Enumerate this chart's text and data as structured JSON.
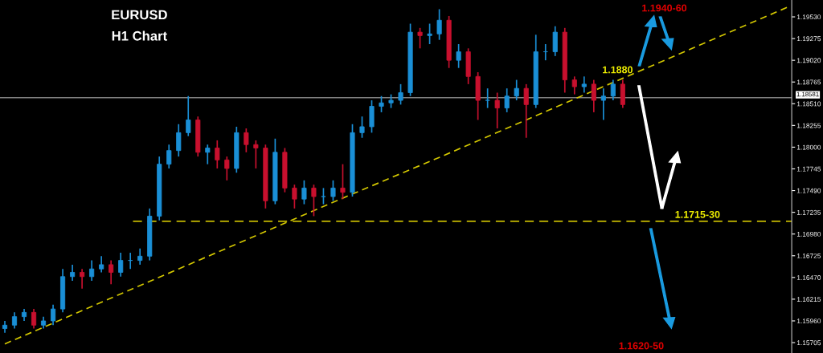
{
  "chart_data": {
    "type": "candlestick",
    "title": "EURUSD",
    "subtitle": "H1 Chart",
    "categories": [
      null,
      null,
      null,
      null,
      null,
      null,
      null,
      null,
      null,
      null,
      null,
      null,
      null,
      null,
      null,
      null,
      null,
      null,
      null,
      null,
      null,
      null,
      null,
      null,
      null,
      null,
      null,
      null,
      null,
      null,
      null,
      null,
      null,
      null,
      null,
      null,
      null,
      null,
      null,
      null,
      null,
      null,
      null,
      null,
      null,
      null,
      null,
      null,
      null,
      null,
      null,
      null,
      null,
      null,
      null,
      null,
      null,
      null,
      null,
      null,
      null,
      null,
      null,
      null,
      null,
      null,
      null,
      null,
      null,
      null,
      null,
      null,
      null,
      null,
      null,
      null,
      null,
      null,
      null,
      null,
      null,
      null
    ],
    "ohlc": [
      [
        1.1587,
        1.1596,
        1.1582,
        1.1591
      ],
      [
        1.1591,
        1.1606,
        1.1587,
        1.1601
      ],
      [
        1.1601,
        1.161,
        1.1596,
        1.1606
      ],
      [
        1.1606,
        1.161,
        1.1587,
        1.1591
      ],
      [
        1.1591,
        1.1601,
        1.1587,
        1.1596
      ],
      [
        1.1596,
        1.1615,
        1.1591,
        1.161
      ],
      [
        1.161,
        1.1657,
        1.1606,
        1.1648
      ],
      [
        1.1648,
        1.1662,
        1.1643,
        1.1653
      ],
      [
        1.1653,
        1.1657,
        1.1634,
        1.1648
      ],
      [
        1.1648,
        1.1667,
        1.1643,
        1.1657
      ],
      [
        1.1657,
        1.1672,
        1.1653,
        1.1662
      ],
      [
        1.1662,
        1.1667,
        1.1639,
        1.1653
      ],
      [
        1.1653,
        1.1676,
        1.1648,
        1.1667
      ],
      [
        1.1667,
        1.1676,
        1.1657,
        1.1667
      ],
      [
        1.1667,
        1.1681,
        1.1662,
        1.1672
      ],
      [
        1.1672,
        1.1728,
        1.1667,
        1.1719
      ],
      [
        1.1719,
        1.1789,
        1.1714,
        1.178
      ],
      [
        1.178,
        1.1803,
        1.1775,
        1.1796
      ],
      [
        1.1796,
        1.1827,
        1.1789,
        1.1817
      ],
      [
        1.1817,
        1.186,
        1.1813,
        1.1832
      ],
      [
        1.1832,
        1.1836,
        1.1789,
        1.1794
      ],
      [
        1.1794,
        1.1803,
        1.178,
        1.1799
      ],
      [
        1.1799,
        1.1808,
        1.1775,
        1.1785
      ],
      [
        1.1785,
        1.1789,
        1.1761,
        1.1775
      ],
      [
        1.1775,
        1.1824,
        1.177,
        1.1817
      ],
      [
        1.1817,
        1.1822,
        1.1794,
        1.1803
      ],
      [
        1.1803,
        1.1808,
        1.1775,
        1.1799
      ],
      [
        1.1799,
        1.1803,
        1.1728,
        1.1737
      ],
      [
        1.1737,
        1.181,
        1.1733,
        1.1794
      ],
      [
        1.1794,
        1.1799,
        1.1747,
        1.1752
      ],
      [
        1.1752,
        1.1756,
        1.1728,
        1.1739
      ],
      [
        1.1739,
        1.1761,
        1.1733,
        1.1752
      ],
      [
        1.1752,
        1.1756,
        1.1719,
        1.1742
      ],
      [
        1.1742,
        1.1752,
        1.1733,
        1.1742
      ],
      [
        1.1742,
        1.1761,
        1.1737,
        1.1752
      ],
      [
        1.1752,
        1.178,
        1.1739,
        1.1747
      ],
      [
        1.1747,
        1.1827,
        1.1742,
        1.1817
      ],
      [
        1.1817,
        1.1836,
        1.1811,
        1.1824
      ],
      [
        1.1824,
        1.1855,
        1.1817,
        1.1848
      ],
      [
        1.1848,
        1.186,
        1.1841,
        1.1852
      ],
      [
        1.1852,
        1.1862,
        1.1846,
        1.1855
      ],
      [
        1.1855,
        1.1874,
        1.185,
        1.1864
      ],
      [
        1.1864,
        1.1945,
        1.186,
        1.1935
      ],
      [
        1.1935,
        1.194,
        1.1916,
        1.1931
      ],
      [
        1.1931,
        1.1945,
        1.1921,
        1.1933
      ],
      [
        1.1933,
        1.1962,
        1.1926,
        1.1949
      ],
      [
        1.1949,
        1.1954,
        1.1893,
        1.1902
      ],
      [
        1.1902,
        1.1921,
        1.1893,
        1.1912
      ],
      [
        1.1912,
        1.1916,
        1.1874,
        1.1883
      ],
      [
        1.1883,
        1.1888,
        1.1832,
        1.1855
      ],
      [
        1.1855,
        1.1869,
        1.1846,
        1.1855
      ],
      [
        1.1855,
        1.1864,
        1.1822,
        1.1846
      ],
      [
        1.1846,
        1.1869,
        1.1841,
        1.186
      ],
      [
        1.186,
        1.1879,
        1.1855,
        1.1869
      ],
      [
        1.1869,
        1.1874,
        1.1811,
        1.185
      ],
      [
        1.185,
        1.1932,
        1.1846,
        1.1912
      ],
      [
        1.1912,
        1.1921,
        1.1902,
        1.1912
      ],
      [
        1.1912,
        1.1942,
        1.1907,
        1.1935
      ],
      [
        1.1935,
        1.194,
        1.1864,
        1.1879
      ],
      [
        1.1879,
        1.1883,
        1.1862,
        1.1871
      ],
      [
        1.1871,
        1.1883,
        1.1864,
        1.1874
      ],
      [
        1.1874,
        1.1879,
        1.1841,
        1.1855
      ],
      [
        1.1855,
        1.1869,
        1.1832,
        1.186
      ],
      [
        1.186,
        1.1879,
        1.1855,
        1.1874
      ],
      [
        1.1874,
        1.1879,
        1.1846,
        1.185
      ],
      null,
      null,
      null,
      null,
      null,
      null,
      null,
      null,
      null,
      null,
      null,
      null,
      null,
      null,
      null,
      null,
      null
    ],
    "colors": [
      "#1a8fd6",
      "#1a8fd6",
      "#1a8fd6",
      "#c8102e",
      "#1a8fd6",
      "#1a8fd6",
      "#1a8fd6",
      "#1a8fd6",
      "#c8102e",
      "#1a8fd6",
      "#1a8fd6",
      "#c8102e",
      "#1a8fd6",
      "#1a8fd6",
      "#1a8fd6",
      "#1a8fd6",
      "#1a8fd6",
      "#1a8fd6",
      "#1a8fd6",
      "#1a8fd6",
      "#c8102e",
      "#1a8fd6",
      "#c8102e",
      "#c8102e",
      "#1a8fd6",
      "#c8102e",
      "#c8102e",
      "#c8102e",
      "#1a8fd6",
      "#c8102e",
      "#c8102e",
      "#1a8fd6",
      "#c8102e",
      "#1a8fd6",
      "#1a8fd6",
      "#c8102e",
      "#1a8fd6",
      "#1a8fd6",
      "#1a8fd6",
      "#1a8fd6",
      "#1a8fd6",
      "#1a8fd6",
      "#1a8fd6",
      "#c8102e",
      "#1a8fd6",
      "#1a8fd6",
      "#c8102e",
      "#1a8fd6",
      "#c8102e",
      "#c8102e",
      "#1a8fd6",
      "#c8102e",
      "#1a8fd6",
      "#1a8fd6",
      "#c8102e",
      "#1a8fd6",
      "#1a8fd6",
      "#1a8fd6",
      "#c8102e",
      "#c8102e",
      "#1a8fd6",
      "#c8102e",
      "#1a8fd6",
      "#1a8fd6",
      "#c8102e",
      null,
      null,
      null,
      null,
      null,
      null,
      null,
      null,
      null,
      null,
      null,
      null,
      null,
      null,
      null,
      null,
      null
    ],
    "series": [
      {
        "type": "line",
        "values": [
          1.1569,
          null,
          null,
          null,
          null,
          null,
          null,
          null,
          null,
          1.1613,
          null,
          null,
          null,
          null,
          null,
          null,
          null,
          null,
          1.1657,
          null,
          null,
          null,
          null,
          null,
          null,
          null,
          null,
          1.1701,
          null,
          null,
          null,
          null,
          null,
          null,
          null,
          null,
          1.1745,
          null,
          null,
          null,
          null,
          null,
          null,
          null,
          null,
          1.1788,
          null,
          null,
          null,
          null,
          null,
          null,
          null,
          null,
          1.1832,
          null,
          null,
          null,
          null,
          null,
          null,
          null,
          null,
          1.1876,
          null,
          null,
          null,
          null,
          null,
          null,
          null,
          null,
          1.192,
          null,
          null,
          null,
          null,
          null,
          null,
          null,
          null,
          1.1964
        ],
        "color": "#d4c800",
        "line_style": "dashed"
      }
    ],
    "ref_lines": [
      {
        "axis": "y",
        "value": 1.18581,
        "label": "1.18581",
        "color": "#808080",
        "line_style": "solid"
      },
      {
        "axis": "y",
        "value": 1.1713,
        "label": null,
        "color": "#e6d800",
        "line_style": "dashed"
      }
    ],
    "annotations": [
      "1.1940-60",
      "1.1880",
      "1.1715-30",
      "1.1620-50"
    ],
    "ylim": [
      1.15583,
      1.19728
    ],
    "yticks": [
      {
        "value": 1.1953,
        "label": "1.19530"
      },
      {
        "value": 1.19275,
        "label": "1.19275"
      },
      {
        "value": 1.1902,
        "label": "1.19020"
      },
      {
        "value": 1.18765,
        "label": "1.18765"
      },
      {
        "value": 1.1851,
        "label": "1.18510"
      },
      {
        "value": 1.18255,
        "label": "1.18255"
      },
      {
        "value": 1.18,
        "label": "1.18000"
      },
      {
        "value": 1.17745,
        "label": "1.17745"
      },
      {
        "value": 1.1749,
        "label": "1.17490"
      },
      {
        "value": 1.17235,
        "label": "1.17235"
      },
      {
        "value": 1.1698,
        "label": "1.16980"
      },
      {
        "value": 1.16725,
        "label": "1.16725"
      },
      {
        "value": 1.1647,
        "label": "1.16470"
      },
      {
        "value": 1.16215,
        "label": "1.16215"
      },
      {
        "value": 1.1596,
        "label": "1.15960"
      },
      {
        "value": 1.15705,
        "label": "1.15705"
      }
    ],
    "tick_labels": "y"
  }
}
